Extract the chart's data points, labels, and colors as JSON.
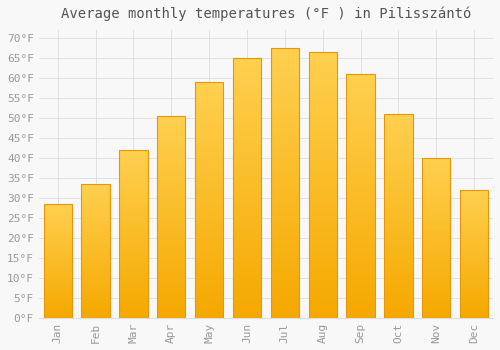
{
  "title": "Average monthly temperatures (°F ) in Pilisszántó",
  "months": [
    "Jan",
    "Feb",
    "Mar",
    "Apr",
    "May",
    "Jun",
    "Jul",
    "Aug",
    "Sep",
    "Oct",
    "Nov",
    "Dec"
  ],
  "values": [
    28.5,
    33.5,
    42.0,
    50.5,
    59.0,
    65.0,
    67.5,
    66.5,
    61.0,
    51.0,
    40.0,
    32.0
  ],
  "bar_color_bottom": "#F5A800",
  "bar_color_top": "#FFD050",
  "bar_edge_color": "#E8960A",
  "background_color": "#f8f8f8",
  "plot_bg_color": "#f8f8f8",
  "grid_color": "#dddddd",
  "ylim": [
    0,
    72
  ],
  "title_fontsize": 10,
  "tick_fontsize": 8,
  "tick_color": "#999999",
  "title_color": "#555555"
}
